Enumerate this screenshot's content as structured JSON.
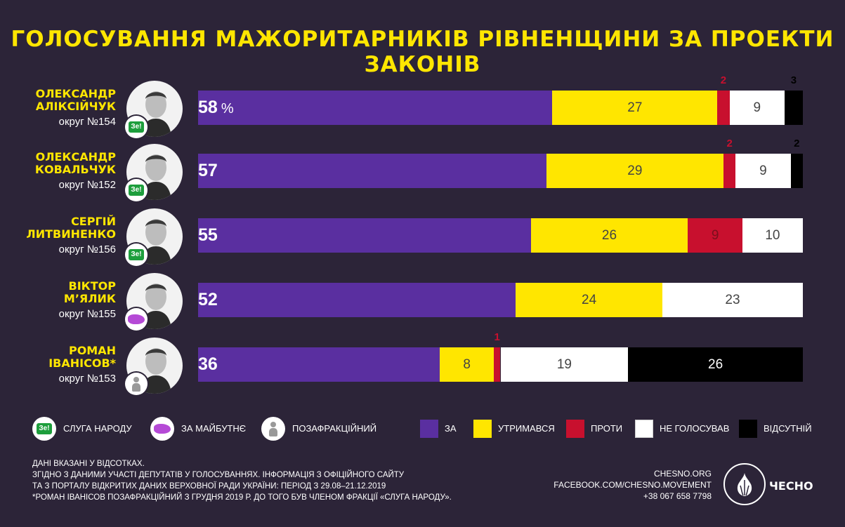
{
  "title": "ГОЛОСУВАННЯ МАЖОРИТАРНИКІВ РІВНЕНЩИНИ ЗА ПРОЕКТИ ЗАКОНІВ",
  "colors": {
    "for": "#5a2fa0",
    "abstain": "#ffe600",
    "against": "#c8102e",
    "not_voted": "#ffffff",
    "absent": "#000000",
    "background": "#2c2438",
    "title": "#ffe600"
  },
  "percent_sign": "%",
  "chart_data": {
    "type": "bar",
    "stacked": true,
    "orientation": "horizontal",
    "title": "ГОЛОСУВАННЯ МАЖОРИТАРНИКІВ РІВНЕНЩИНИ ЗА ПРОЕКТИ ЗАКОНІВ",
    "categories": [
      "ОЛЕКСАНДР АЛІКСІЙЧУК",
      "ОЛЕКСАНДР КОВАЛЬЧУК",
      "СЕРГІЙ ЛИТВИНЕНКО",
      "ВІКТОР М’ЯЛИК",
      "РОМАН ІВАНІСОВ*"
    ],
    "series": [
      {
        "name": "ЗА",
        "values": [
          58,
          57,
          55,
          52,
          36
        ]
      },
      {
        "name": "УТРИМАВСЯ",
        "values": [
          27,
          29,
          26,
          24,
          8
        ]
      },
      {
        "name": "ПРОТИ",
        "values": [
          2,
          2,
          9,
          0,
          1
        ]
      },
      {
        "name": "НЕ ГОЛОСУВАВ",
        "values": [
          9,
          9,
          10,
          23,
          19
        ]
      },
      {
        "name": "ВІДСУТНІЙ",
        "values": [
          3,
          2,
          0,
          0,
          26
        ]
      }
    ]
  },
  "deputies": [
    {
      "first": "ОЛЕКСАНДР",
      "last": "АЛІКСІЙЧУК",
      "district": "округ №154",
      "faction": "ze",
      "values": [
        58,
        27,
        2,
        9,
        3
      ]
    },
    {
      "first": "ОЛЕКСАНДР",
      "last": "КОВАЛЬЧУК",
      "district": "округ №152",
      "faction": "ze",
      "values": [
        57,
        29,
        2,
        9,
        2
      ]
    },
    {
      "first": "СЕРГІЙ",
      "last": "ЛИТВИНЕНКО",
      "district": "округ №156",
      "faction": "ze",
      "values": [
        55,
        26,
        9,
        10,
        0
      ]
    },
    {
      "first": "ВІКТОР",
      "last": "М’ЯЛИК",
      "district": "округ №155",
      "faction": "future",
      "values": [
        52,
        24,
        0,
        23,
        0
      ]
    },
    {
      "first": "РОМАН",
      "last": "ІВАНІСОВ*",
      "district": "округ №153",
      "faction": "independent",
      "values": [
        36,
        8,
        1,
        19,
        26
      ]
    }
  ],
  "legend": {
    "factions": [
      {
        "key": "ze",
        "label": "СЛУГА НАРОДУ",
        "badge": "Зе!"
      },
      {
        "key": "future",
        "label": "ЗА МАЙБУТНЄ"
      },
      {
        "key": "independent",
        "label": "ПОЗАФРАКЦІЙНИЙ"
      }
    ],
    "votes": [
      {
        "key": "for",
        "label": "ЗА"
      },
      {
        "key": "abstain",
        "label": "УТРИМАВСЯ"
      },
      {
        "key": "against",
        "label": "ПРОТИ"
      },
      {
        "key": "not_voted",
        "label": "НЕ ГОЛОСУВАВ"
      },
      {
        "key": "absent",
        "label": "ВІДСУТНІЙ"
      }
    ]
  },
  "footer": {
    "notes": [
      "ДАНІ ВКАЗАНІ У ВІДСОТКАХ.",
      "ЗГІДНО З ДАНИМИ УЧАСТІ ДЕПУТАТІВ У ГОЛОСУВАННЯХ. ІНФОРМАЦІЯ З ОФІЦІЙНОГО САЙТУ",
      "ТА З ПОРТАЛУ ВІДКРИТИХ ДАНИХ ВЕРХОВНОЇ РАДИ УКРАЇНИ: ПЕРІОД З 29.08–21.12.2019",
      "*РОМАН ІВАНІСОВ ПОЗАФРАКЦІЙНИЙ З ГРУДНЯ 2019 Р. ДО ТОГО БУВ ЧЛЕНОМ ФРАКЦІЇ «СЛУГА НАРОДУ»."
    ],
    "site": "CHESNO.ORG",
    "facebook": "FACEBOOK.COM/CHESNO.MOVEMENT",
    "phone": "+38 067 658 7798",
    "brand": "ЧЕСНО"
  }
}
